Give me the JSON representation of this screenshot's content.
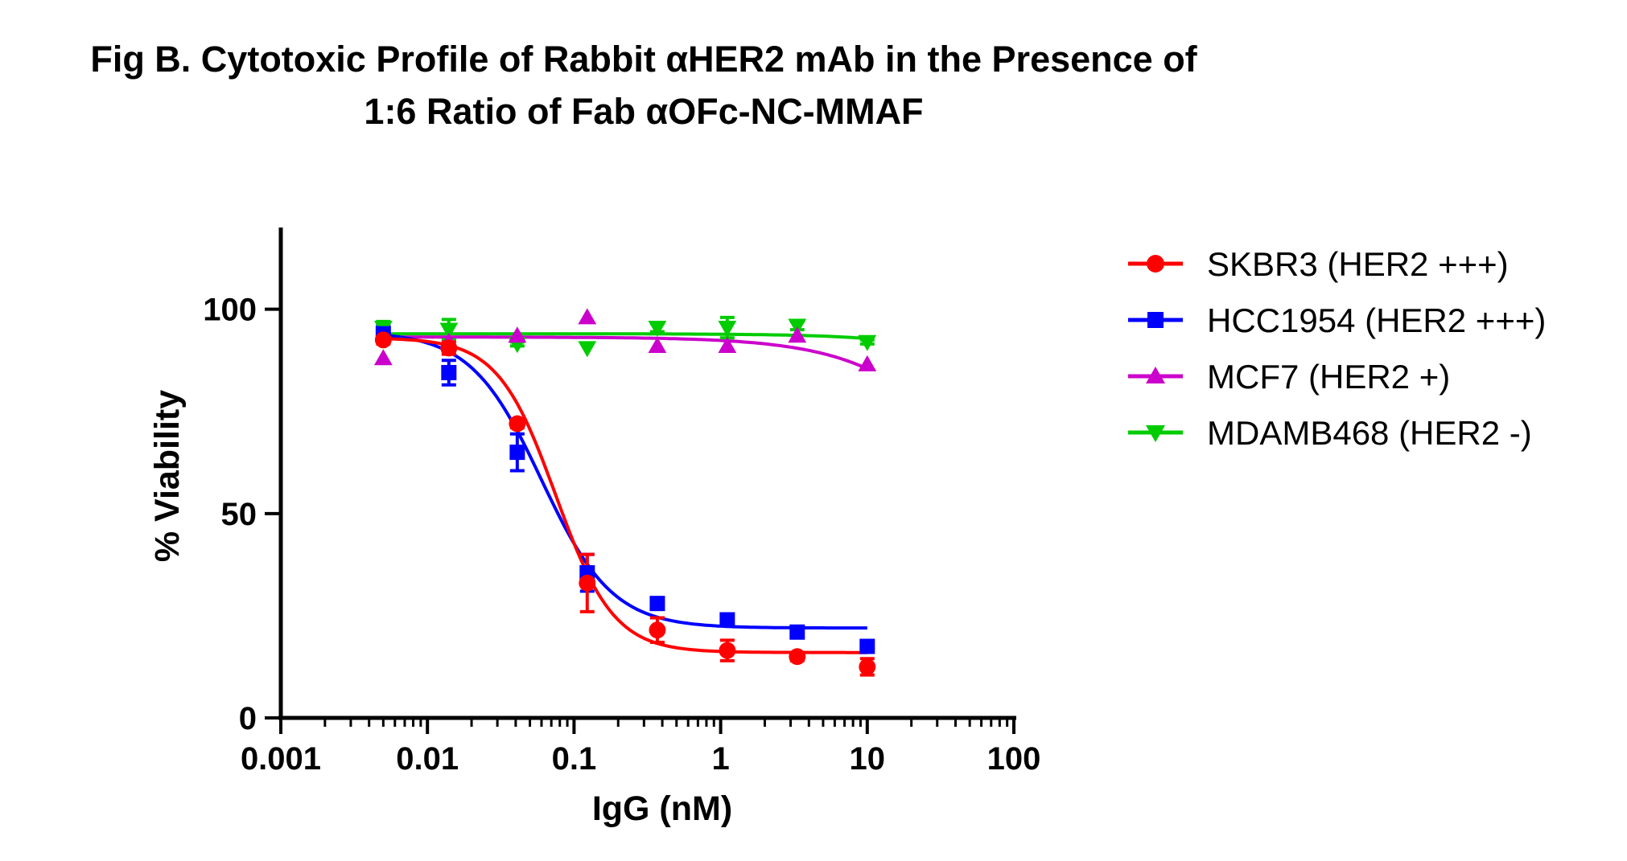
{
  "chart_data": {
    "type": "scatter",
    "title": [
      "Fig B. Cytotoxic Profile of Rabbit αHER2 mAb in the Presence of",
      "1:6 Ratio of Fab αOFc-NC-MMAF"
    ],
    "xlabel": "IgG (nM)",
    "ylabel": "% Viability",
    "xscale": "log",
    "xlim": [
      0.001,
      100
    ],
    "ylim": [
      0,
      120
    ],
    "xticks": [
      0.001,
      0.01,
      0.1,
      1,
      10,
      100
    ],
    "xtick_labels": [
      "0.001",
      "0.01",
      "0.1",
      "1",
      "10",
      "100"
    ],
    "yticks": [
      0,
      50,
      100
    ],
    "ytick_labels": [
      "0",
      "50",
      "100"
    ],
    "legend_position": "right",
    "x": [
      0.005,
      0.014,
      0.041,
      0.123,
      0.37,
      1.11,
      3.33,
      10
    ],
    "series": [
      {
        "name": "SKBR3 (HER2 +++)",
        "color": "#ff0000",
        "marker": "circle",
        "values": [
          92.5,
          90.5,
          72,
          33,
          21.5,
          16.5,
          15,
          12.5
        ],
        "errors": [
          1.0,
          1.5,
          1.0,
          7.0,
          3.0,
          2.5,
          1.0,
          2.0
        ],
        "fit": {
          "top": 93,
          "bottom": 16,
          "ec50": 0.075,
          "hill": 2.2
        }
      },
      {
        "name": "HCC1954 (HER2 +++)",
        "color": "#0000ff",
        "marker": "square",
        "values": [
          94,
          84.5,
          65,
          35.5,
          28,
          24,
          21,
          17.5
        ],
        "errors": [
          2.0,
          3.0,
          4.5,
          4.5,
          1.0,
          1.0,
          1.0,
          1.0
        ],
        "fit": {
          "top": 94.5,
          "bottom": 22,
          "ec50": 0.06,
          "hill": 1.8
        }
      },
      {
        "name": "MCF7 (HER2 +)",
        "color": "#cc00cc",
        "marker": "triangle-up",
        "values": [
          88,
          92,
          93.5,
          98,
          91,
          91,
          93.5,
          86.5
        ],
        "errors": [
          0,
          0,
          0,
          0,
          0,
          0,
          0,
          0
        ],
        "fit": {
          "top": 93.2,
          "bottom": 0,
          "ec50": 110,
          "hill": 1.0
        }
      },
      {
        "name": "MDAMB468 (HER2 -)",
        "color": "#00cc00",
        "marker": "triangle-down",
        "values": [
          95.5,
          95,
          91.5,
          90.5,
          95.5,
          95.5,
          96,
          92
        ],
        "errors": [
          1.5,
          2.5,
          0.5,
          0,
          1.0,
          2.5,
          1.0,
          0.5
        ],
        "fit": {
          "top": 94,
          "bottom": 0,
          "ec50": 800,
          "hill": 1.0
        }
      }
    ]
  }
}
